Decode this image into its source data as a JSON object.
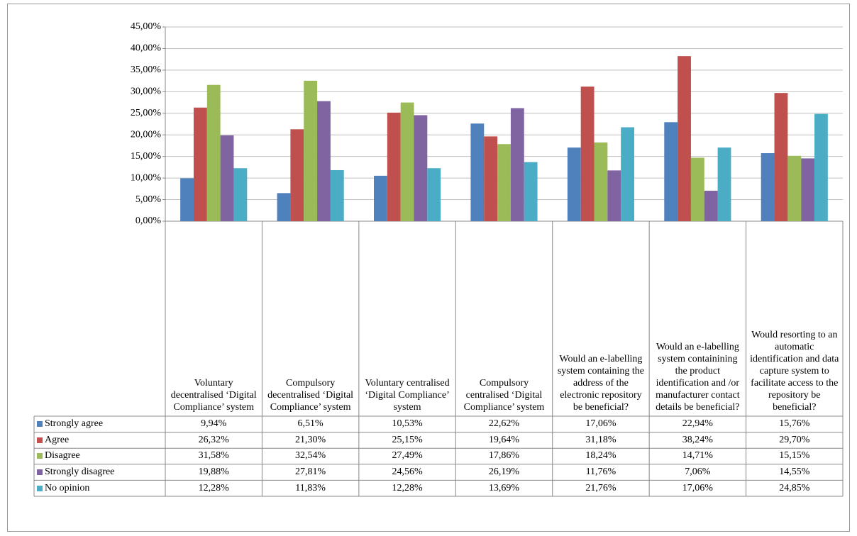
{
  "chart_data": {
    "type": "bar",
    "categories": [
      "Voluntary decentralised ‘Digital Compliance’ system",
      "Compulsory decentralised ‘Digital Compliance’ system",
      "Voluntary centralised ‘Digital Compliance’ system",
      "Compulsory centralised ‘Digital Compliance’ system",
      "Would an e-labelling system containing the address of the electronic repository be beneficial?",
      "Would an e-labelling system containining the product identification and /or manufacturer contact details be beneficial?",
      "Would resorting to an automatic identification and data capture system to facilitate access to the repository be beneficial?"
    ],
    "series": [
      {
        "name": "Strongly agree",
        "color": "#4f81bd",
        "values": [
          9.94,
          6.51,
          10.53,
          22.62,
          17.06,
          22.94,
          15.76
        ],
        "value_labels": [
          "9,94%",
          "6,51%",
          "10,53%",
          "22,62%",
          "17,06%",
          "22,94%",
          "15,76%"
        ]
      },
      {
        "name": "Agree",
        "color": "#c0504d",
        "values": [
          26.32,
          21.3,
          25.15,
          19.64,
          31.18,
          38.24,
          29.7
        ],
        "value_labels": [
          "26,32%",
          "21,30%",
          "25,15%",
          "19,64%",
          "31,18%",
          "38,24%",
          "29,70%"
        ]
      },
      {
        "name": "Disagree",
        "color": "#9bbb59",
        "values": [
          31.58,
          32.54,
          27.49,
          17.86,
          18.24,
          14.71,
          15.15
        ],
        "value_labels": [
          "31,58%",
          "32,54%",
          "27,49%",
          "17,86%",
          "18,24%",
          "14,71%",
          "15,15%"
        ]
      },
      {
        "name": "Strongly disagree",
        "color": "#8064a2",
        "values": [
          19.88,
          27.81,
          24.56,
          26.19,
          11.76,
          7.06,
          14.55
        ],
        "value_labels": [
          "19,88%",
          "27,81%",
          "24,56%",
          "26,19%",
          "11,76%",
          "7,06%",
          "14,55%"
        ]
      },
      {
        "name": "No opinion",
        "color": "#4bacc6",
        "values": [
          12.28,
          11.83,
          12.28,
          13.69,
          21.76,
          17.06,
          24.85
        ],
        "value_labels": [
          "12,28%",
          "11,83%",
          "12,28%",
          "13,69%",
          "21,76%",
          "17,06%",
          "24,85%"
        ]
      }
    ],
    "ylim": [
      0,
      45
    ],
    "yticks": [
      {
        "value": 0,
        "label": "0,00%"
      },
      {
        "value": 5,
        "label": "5,00%"
      },
      {
        "value": 10,
        "label": "10,00%"
      },
      {
        "value": 15,
        "label": "15,00%"
      },
      {
        "value": 20,
        "label": "20,00%"
      },
      {
        "value": 25,
        "label": "25,00%"
      },
      {
        "value": 30,
        "label": "30,00%"
      },
      {
        "value": 35,
        "label": "35,00%"
      },
      {
        "value": 40,
        "label": "40,00%"
      },
      {
        "value": 45,
        "label": "45,00%"
      }
    ],
    "grid": true
  }
}
